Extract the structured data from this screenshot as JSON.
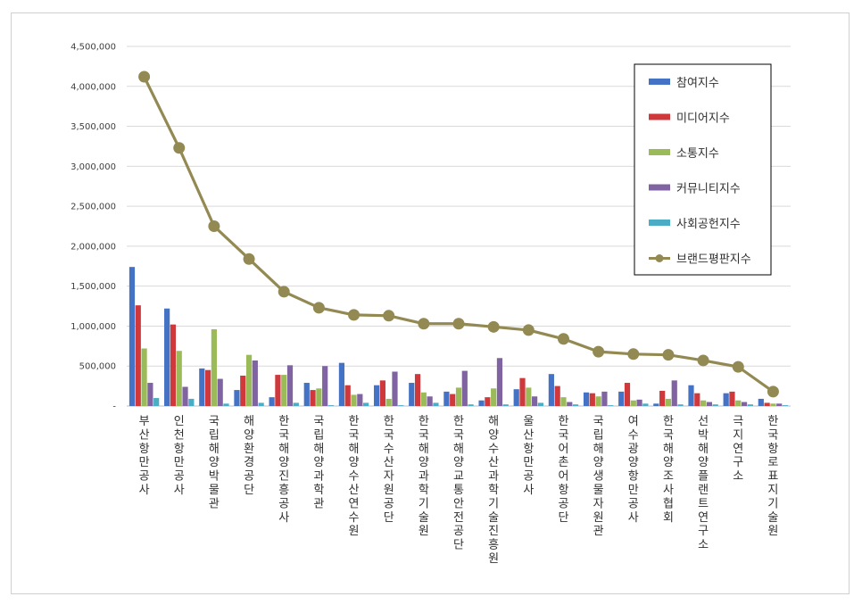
{
  "chart_data": {
    "type": "bar",
    "ylim": [
      0,
      4500000
    ],
    "yticks": [
      "-",
      "500,000",
      "1,000,000",
      "1,500,000",
      "2,000,000",
      "2,500,000",
      "3,000,000",
      "3,500,000",
      "4,000,000",
      "4,500,000"
    ],
    "ytick_values": [
      0,
      500000,
      1000000,
      1500000,
      2000000,
      2500000,
      3000000,
      3500000,
      4000000,
      4500000
    ],
    "grid": true,
    "legend_position": "top-right",
    "categories": [
      "부산항만공사",
      "인천항만공사",
      "국립해양박물관",
      "해양환경공단",
      "한국해양진흥공사",
      "국립해양과학관",
      "한국해양수산연수원",
      "한국수산자원공단",
      "한국해양과학기술원",
      "한국해양교통안전공단",
      "해양수산과학기술진흥원",
      "울산항만공사",
      "한국어촌어항공단",
      "국립해양생물자원관",
      "여수광양항만공사",
      "한국해양조사협회",
      "선박해양플랜트연구소",
      "극지연구소",
      "한국항로표지기술원"
    ],
    "series": [
      {
        "name": "참여지수",
        "kind": "bar",
        "color": "#4472c4",
        "values": [
          1740000,
          1220000,
          470000,
          200000,
          110000,
          290000,
          540000,
          260000,
          290000,
          180000,
          70000,
          210000,
          400000,
          170000,
          180000,
          30000,
          260000,
          160000,
          90000
        ]
      },
      {
        "name": "미디어지수",
        "kind": "bar",
        "color": "#d0393b",
        "values": [
          1260000,
          1020000,
          450000,
          380000,
          390000,
          200000,
          260000,
          320000,
          400000,
          150000,
          110000,
          350000,
          250000,
          160000,
          290000,
          190000,
          160000,
          180000,
          40000
        ]
      },
      {
        "name": "소통지수",
        "kind": "bar",
        "color": "#9bbb59",
        "values": [
          720000,
          690000,
          960000,
          640000,
          390000,
          220000,
          140000,
          90000,
          170000,
          230000,
          220000,
          230000,
          110000,
          120000,
          70000,
          90000,
          70000,
          70000,
          30000
        ]
      },
      {
        "name": "커뮤니티지수",
        "kind": "bar",
        "color": "#8064a2",
        "values": [
          290000,
          240000,
          340000,
          570000,
          510000,
          500000,
          150000,
          430000,
          120000,
          440000,
          600000,
          120000,
          50000,
          180000,
          80000,
          320000,
          50000,
          50000,
          30000
        ]
      },
      {
        "name": "사회공헌지수",
        "kind": "bar",
        "color": "#4bacc6",
        "values": [
          100000,
          90000,
          30000,
          40000,
          40000,
          10000,
          40000,
          10000,
          40000,
          20000,
          20000,
          40000,
          20000,
          10000,
          30000,
          20000,
          20000,
          20000,
          10000
        ]
      },
      {
        "name": "브랜드평판지수",
        "kind": "line",
        "color": "#938953",
        "values": [
          4120000,
          3230000,
          2250000,
          1840000,
          1430000,
          1230000,
          1140000,
          1130000,
          1030000,
          1030000,
          990000,
          950000,
          840000,
          680000,
          650000,
          640000,
          570000,
          490000,
          180000
        ]
      }
    ]
  }
}
